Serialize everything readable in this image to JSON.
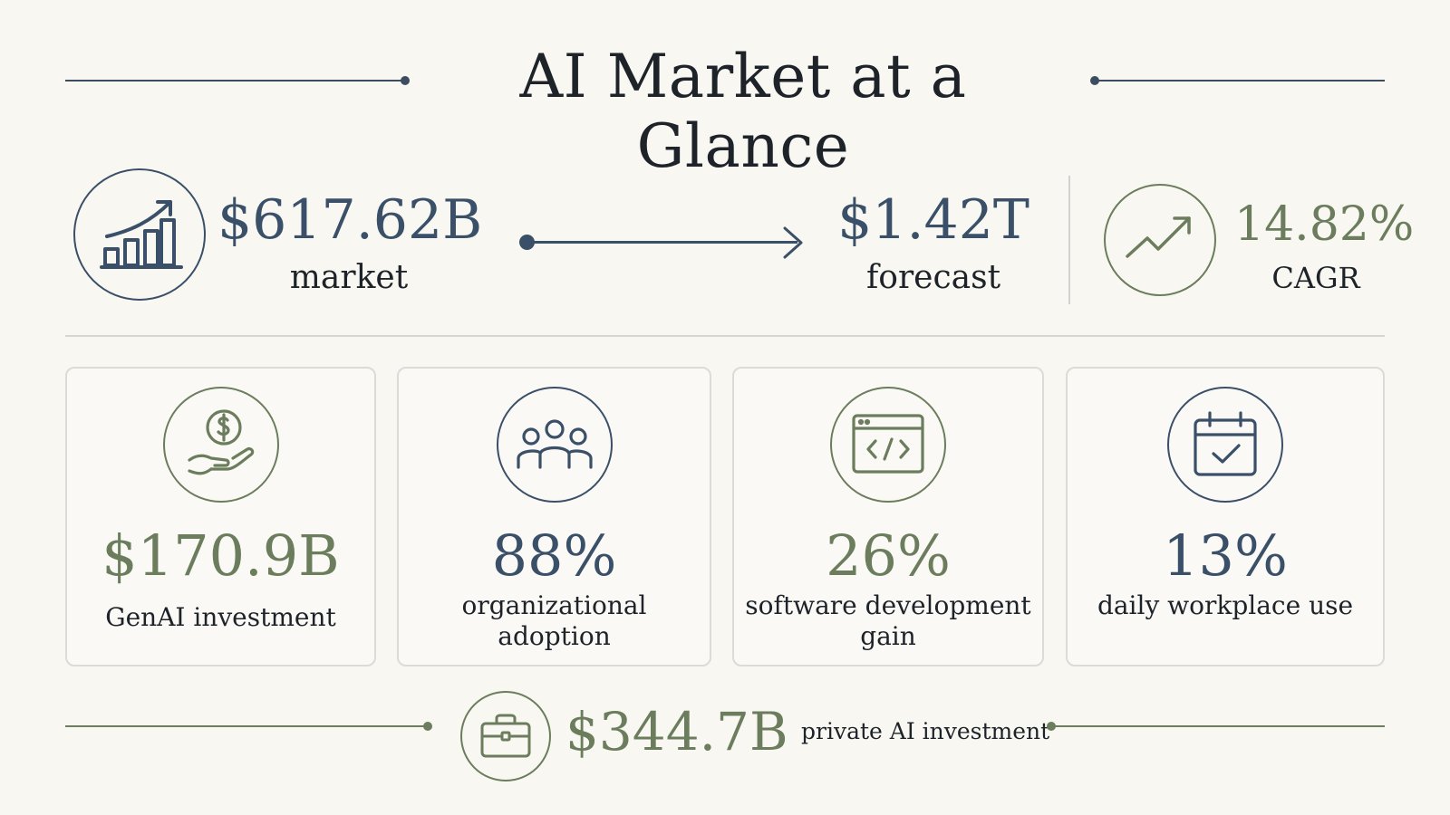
{
  "title": "AI Market at a Glance",
  "top_metrics": {
    "market": {
      "value": "$617.62B",
      "label": "market",
      "icon": "bar-chart-growth-icon"
    },
    "forecast": {
      "value": "$1.42T",
      "label": "forecast"
    },
    "cagr": {
      "value": "14.82%",
      "label": "CAGR",
      "icon": "trend-up-icon"
    }
  },
  "cards": [
    {
      "value": "$170.9B",
      "label": "GenAI investment",
      "icon": "hand-dollar-icon",
      "color": "#6b7d5c"
    },
    {
      "value": "88%",
      "label": "organizational adoption",
      "icon": "people-group-icon",
      "color": "#3a4f68"
    },
    {
      "value": "26%",
      "label": "software development gain",
      "icon": "code-window-icon",
      "color": "#6b7d5c"
    },
    {
      "value": "13%",
      "label": "daily workplace use",
      "icon": "calendar-check-icon",
      "color": "#3a4f68"
    }
  ],
  "bottom": {
    "value": "$344.7B",
    "label": "private AI investment",
    "icon": "briefcase-icon"
  },
  "colors": {
    "navy": "#3a4f68",
    "green": "#6b7d5c",
    "background": "#f8f7f2"
  }
}
